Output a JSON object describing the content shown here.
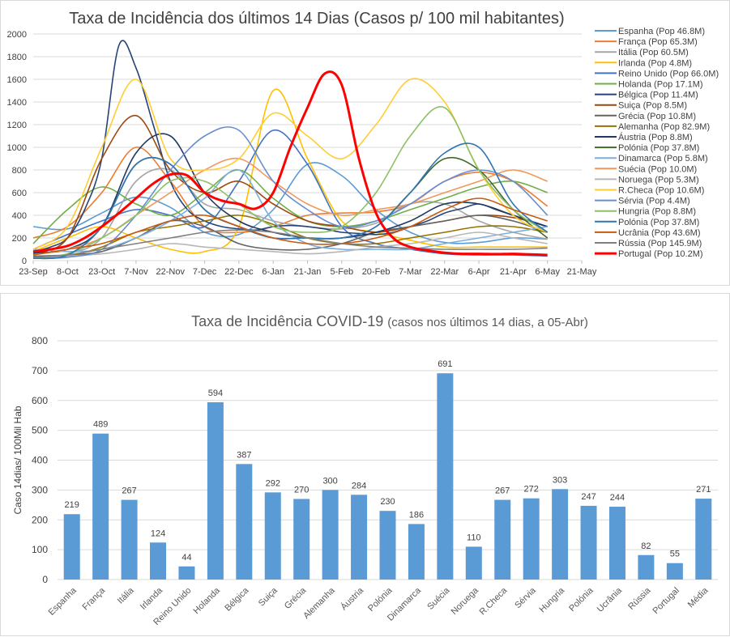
{
  "chart_data": [
    {
      "type": "line",
      "title": "Taxa de Incidência dos últimos 14 Dias (Casos p/ 100 mil habitantes)",
      "xlabel": "",
      "ylabel": "",
      "ylim": [
        0,
        2000
      ],
      "yticks": [
        0,
        200,
        400,
        600,
        800,
        1000,
        1200,
        1400,
        1600,
        1800,
        2000
      ],
      "xtick_labels": [
        "23-Sep",
        "8-Oct",
        "23-Oct",
        "7-Nov",
        "22-Nov",
        "7-Dec",
        "22-Dec",
        "6-Jan",
        "21-Jan",
        "5-Feb",
        "20-Feb",
        "7-Mar",
        "22-Mar",
        "6-Apr",
        "21-Apr",
        "6-May",
        "21-May"
      ],
      "x_span_days": 240,
      "data_span_days": 225,
      "grid": true,
      "legend_position": "right",
      "series": [
        {
          "name": "Espanha (Pop 46.8M)",
          "color": "#5b9bd5",
          "values": [
            300,
            280,
            420,
            560,
            470,
            250,
            230,
            450,
            850,
            750,
            450,
            250,
            160,
            160,
            200,
            190
          ]
        },
        {
          "name": "França (Pop 65.3M)",
          "color": "#ed7d31",
          "values": [
            200,
            300,
            600,
            1000,
            700,
            300,
            250,
            300,
            400,
            420,
            430,
            500,
            700,
            780,
            700,
            480
          ]
        },
        {
          "name": "Itália (Pop 60.5M)",
          "color": "#a5a5a5",
          "values": [
            30,
            60,
            200,
            700,
            800,
            500,
            450,
            350,
            300,
            280,
            330,
            500,
            500,
            350,
            250,
            190
          ]
        },
        {
          "name": "Irlanda (Pop 4.8M)",
          "color": "#ffc000",
          "values": [
            80,
            200,
            300,
            200,
            100,
            80,
            300,
            1500,
            900,
            350,
            250,
            180,
            120,
            120,
            120,
            120
          ]
        },
        {
          "name": "Reino Unido (Pop 66.0M)",
          "color": "#4472c4",
          "values": [
            100,
            230,
            350,
            450,
            400,
            300,
            700,
            1150,
            850,
            300,
            150,
            100,
            60,
            50,
            50,
            40
          ]
        },
        {
          "name": "Holanda (Pop 17.1M)",
          "color": "#70ad47",
          "values": [
            150,
            450,
            650,
            500,
            400,
            600,
            800,
            550,
            350,
            300,
            350,
            450,
            550,
            650,
            700,
            600
          ]
        },
        {
          "name": "Bélgica (Pop 11.4M)",
          "color": "#264478",
          "values": [
            80,
            120,
            200,
            450,
            900,
            1900,
            1700,
            1200,
            700,
            450,
            350,
            300,
            280,
            270,
            300,
            310,
            300,
            280,
            250,
            240,
            230,
            250,
            300,
            350,
            420,
            460,
            500,
            450,
            400,
            350,
            300
          ]
        },
        {
          "name": "Suiça (Pop 8.5M)",
          "color": "#9e480e",
          "values": [
            60,
            200,
            900,
            1280,
            800,
            600,
            700,
            500,
            350,
            300,
            250,
            300,
            350,
            400,
            380,
            300
          ]
        },
        {
          "name": "Grécia (Pop 10.8M)",
          "color": "#636363",
          "values": [
            40,
            50,
            80,
            200,
            350,
            300,
            150,
            100,
            100,
            150,
            250,
            300,
            350,
            400,
            350,
            250
          ]
        },
        {
          "name": "Alemanha (Pop 82.9M)",
          "color": "#997300",
          "values": [
            20,
            40,
            120,
            250,
            300,
            350,
            400,
            320,
            200,
            150,
            150,
            200,
            250,
            300,
            300,
            250
          ]
        },
        {
          "name": "Áustria (Pop 8.8M)",
          "color": "#1f3864",
          "values": [
            70,
            100,
            300,
            950,
            1100,
            600,
            350,
            250,
            200,
            200,
            250,
            350,
            500,
            500,
            400,
            300
          ]
        },
        {
          "name": "Polónia (Pop 37.8M)",
          "color": "#43682b",
          "values": [
            20,
            50,
            300,
            850,
            850,
            450,
            300,
            200,
            200,
            200,
            300,
            600,
            900,
            800,
            450,
            200
          ]
        },
        {
          "name": "Dinamarca (Pop 5.8M)",
          "color": "#7cafdd",
          "values": [
            100,
            80,
            100,
            200,
            350,
            550,
            800,
            350,
            150,
            100,
            100,
            100,
            150,
            200,
            250,
            300
          ]
        },
        {
          "name": "Suécia (Pop 10.0M)",
          "color": "#f1975a",
          "values": [
            50,
            100,
            200,
            400,
            600,
            800,
            900,
            700,
            500,
            400,
            450,
            500,
            600,
            700,
            800,
            700
          ]
        },
        {
          "name": "Noruega (Pop 5.3M)",
          "color": "#b7b7b7",
          "values": [
            30,
            40,
            60,
            100,
            150,
            120,
            100,
            80,
            60,
            80,
            120,
            150,
            200,
            250,
            200,
            150
          ]
        },
        {
          "name": "R.Checa (Pop 10.6M)",
          "color": "#ffcd33",
          "values": [
            100,
            300,
            1000,
            1600,
            900,
            800,
            900,
            1300,
            1100,
            900,
            1200,
            1600,
            1400,
            800,
            400,
            250
          ]
        },
        {
          "name": "Sérvia (Pop 4.4M)",
          "color": "#698ed0",
          "values": [
            20,
            30,
            100,
            400,
            800,
            1100,
            1150,
            700,
            450,
            300,
            350,
            500,
            700,
            800,
            700,
            400
          ]
        },
        {
          "name": "Hungria (Pop 8.8M)",
          "color": "#8cc168",
          "values": [
            30,
            60,
            200,
            400,
            700,
            700,
            500,
            300,
            250,
            300,
            600,
            1100,
            1350,
            800,
            450,
            250
          ]
        },
        {
          "name": "Polónia (Pop 37.8M)",
          "color": "#2e75b6",
          "values": [
            20,
            50,
            300,
            850,
            850,
            450,
            300,
            200,
            200,
            200,
            300,
            600,
            950,
            1000,
            500,
            250
          ]
        },
        {
          "name": "Ucrânia (Pop 43.6M)",
          "color": "#c55a11",
          "values": [
            50,
            100,
            150,
            250,
            350,
            400,
            300,
            200,
            150,
            150,
            200,
            300,
            450,
            550,
            450,
            350
          ]
        },
        {
          "name": "Rússia (Pop 145.9M)",
          "color": "#7f7f7f",
          "values": [
            30,
            50,
            100,
            150,
            200,
            250,
            270,
            250,
            200,
            150,
            120,
            110,
            100,
            100,
            100,
            110
          ]
        },
        {
          "name": "Portugal (Pop 10.2M)",
          "color": "#ff0000",
          "highlight": true,
          "values": [
            80,
            100,
            130,
            200,
            300,
            420,
            550,
            680,
            760,
            750,
            600,
            530,
            500,
            460,
            600,
            1000,
            1350,
            1650,
            1550,
            900,
            420,
            200,
            120,
            90,
            70,
            60,
            60,
            58,
            60,
            55,
            50
          ]
        }
      ]
    },
    {
      "type": "bar",
      "title": "Taxa de Incidência  COVID-19",
      "subtitle": "(casos nos últimos 14 dias, a 05-Abr)",
      "xlabel": "",
      "ylabel": "Caso 14dias/ 100Mil Hab",
      "ylim": [
        0,
        800
      ],
      "yticks": [
        0,
        100,
        200,
        300,
        400,
        500,
        600,
        700,
        800
      ],
      "grid": true,
      "bar_color": "#5b9bd5",
      "categories": [
        "Espanha",
        "França",
        "Itália",
        "Irlanda",
        "Reino Unido",
        "Holanda",
        "Bélgica",
        "Suiça",
        "Grécia",
        "Alemanha",
        "Áustria",
        "Polónia",
        "Dinamarca",
        "Suécia",
        "Noruega",
        "R.Checa",
        "Sérvia",
        "Hungria",
        "Polónia",
        "Ucrânia",
        "Rússia",
        "Portugal",
        "Média"
      ],
      "values": [
        219,
        489,
        267,
        124,
        44,
        594,
        387,
        292,
        270,
        300,
        284,
        230,
        186,
        691,
        110,
        267,
        272,
        303,
        247,
        244,
        82,
        55,
        271
      ]
    }
  ]
}
